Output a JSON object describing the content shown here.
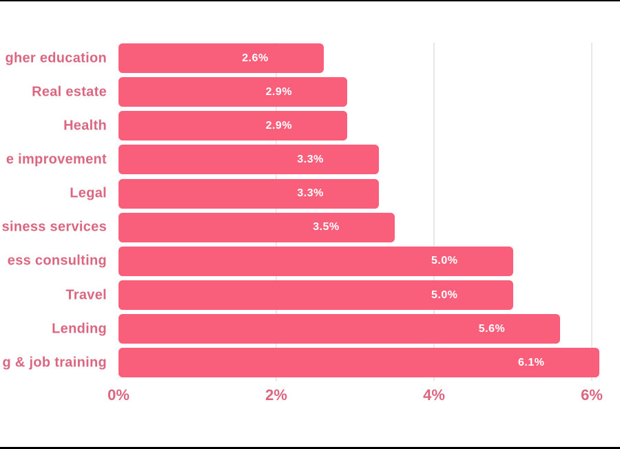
{
  "chart_data": {
    "type": "bar",
    "orientation": "horizontal",
    "title": "",
    "categories": [
      "gher education",
      "Real estate",
      "Health",
      "e improvement",
      "Legal",
      "siness services",
      "ess consulting",
      "Travel",
      "Lending",
      "g & job training"
    ],
    "values": [
      2.6,
      2.9,
      2.9,
      3.3,
      3.3,
      3.5,
      5.0,
      5.0,
      5.6,
      6.1
    ],
    "value_labels": [
      "2.6%",
      "2.9%",
      "2.9%",
      "3.3%",
      "3.3%",
      "3.5%",
      "5.0%",
      "5.0%",
      "5.6%",
      "6.1%"
    ],
    "x_ticks": [
      {
        "value": 0,
        "label": "0%"
      },
      {
        "value": 2,
        "label": "2%"
      },
      {
        "value": 4,
        "label": "4%"
      },
      {
        "value": 6,
        "label": "6%"
      }
    ],
    "xlim": [
      0,
      6.36
    ],
    "xlabel": "",
    "ylabel": "",
    "grid": "vertical gridlines at 2%, 4%, 6%",
    "legend": "none",
    "notes": "category labels are right-aligned and clipped at the left edge of the image; value labels sit inside bars near the right end"
  },
  "colors": {
    "bar_fill": "#F95E7B",
    "category_text": "#DA6680",
    "tick_text": "#DA6680",
    "value_text": "#FFFFFF",
    "gridline": "#EAE6EA",
    "background": "#FFFFFF",
    "frame_border": "#000000"
  }
}
